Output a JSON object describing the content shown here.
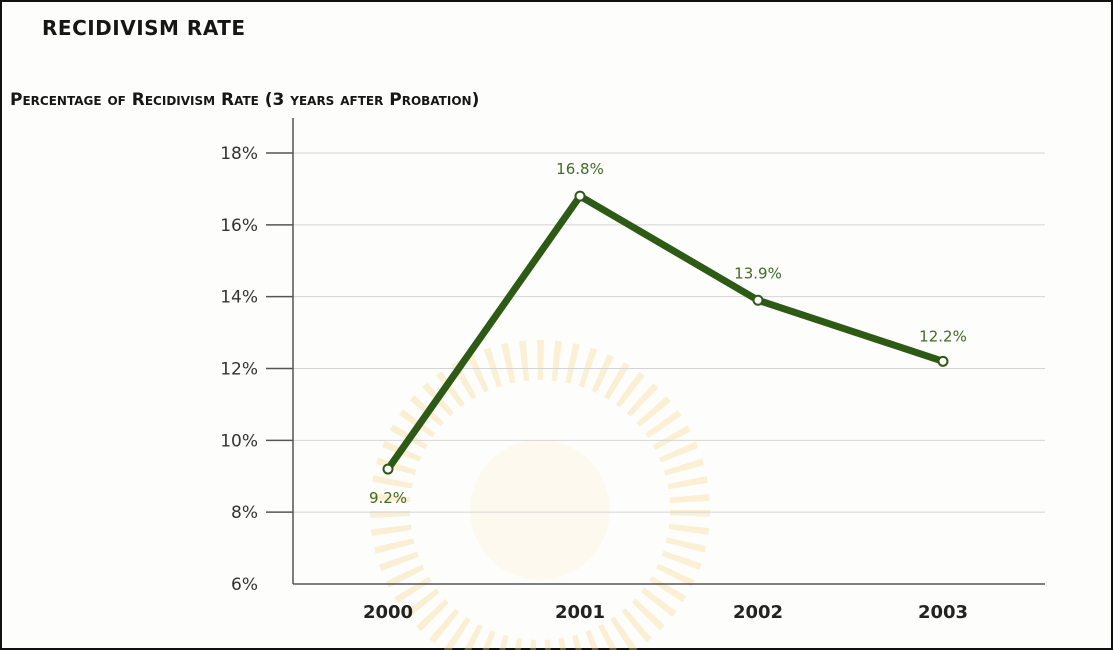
{
  "chart_data": {
    "type": "line",
    "title": "RECIDIVISM RATE",
    "subtitle": "Percentage of Recidivism Rate (3 years after Probation)",
    "categories": [
      "2000",
      "2001",
      "2002",
      "2003"
    ],
    "series": [
      {
        "values": [
          9.2,
          16.8,
          13.9,
          12.2
        ],
        "labels": [
          "9.2%",
          "16.8%",
          "13.9%",
          "12.2%"
        ]
      }
    ],
    "y_ticks": [
      "6%",
      "8%",
      "10%",
      "12%",
      "14%",
      "16%",
      "18%"
    ],
    "ylim": [
      6,
      18
    ],
    "grid": true,
    "colors": {
      "line": "#2d5a14",
      "data_label": "#3f6b25",
      "axis": "#555555",
      "grid": "#d4d4d4"
    }
  }
}
